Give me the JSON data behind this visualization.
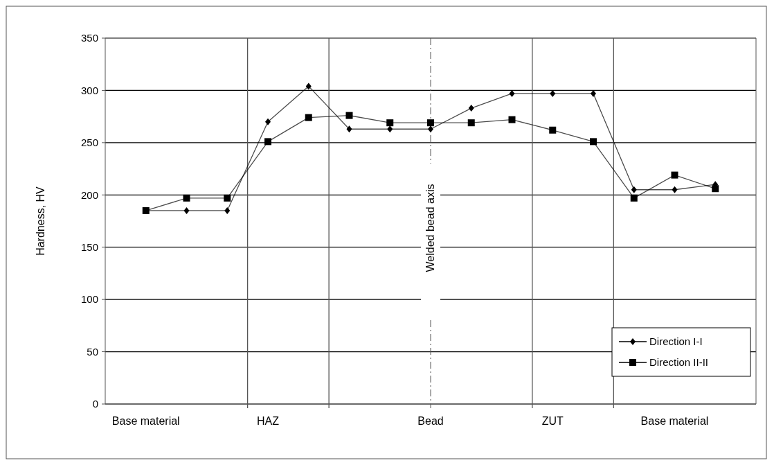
{
  "chart_data": {
    "type": "line",
    "ylabel": "Hardness, HV",
    "categories": [
      "Base material",
      null,
      null,
      "HAZ",
      null,
      null,
      null,
      "Bead",
      null,
      null,
      "ZUT",
      null,
      null,
      "Base material",
      null
    ],
    "ylim": [
      0,
      350
    ],
    "yticks": [
      0,
      50,
      100,
      150,
      200,
      250,
      300,
      350
    ],
    "grid": "y",
    "legend": "bottom right",
    "series": [
      {
        "name": "Direction I-I",
        "color": "#000000",
        "marker": "diamond",
        "values": [
          185,
          185,
          185,
          270,
          304,
          263,
          263,
          263,
          283,
          297,
          297,
          297,
          205,
          205,
          210
        ]
      },
      {
        "name": "Direction II-II",
        "color": "#000000",
        "marker": "square",
        "values": [
          185,
          197,
          197,
          251,
          274,
          276,
          269,
          269,
          269,
          272,
          262,
          251,
          197,
          219,
          206
        ]
      }
    ],
    "ref_lines": [
      {
        "axis": "x",
        "value": "Bead",
        "label": "Welded bead axis",
        "line_style": "dashed"
      }
    ]
  }
}
